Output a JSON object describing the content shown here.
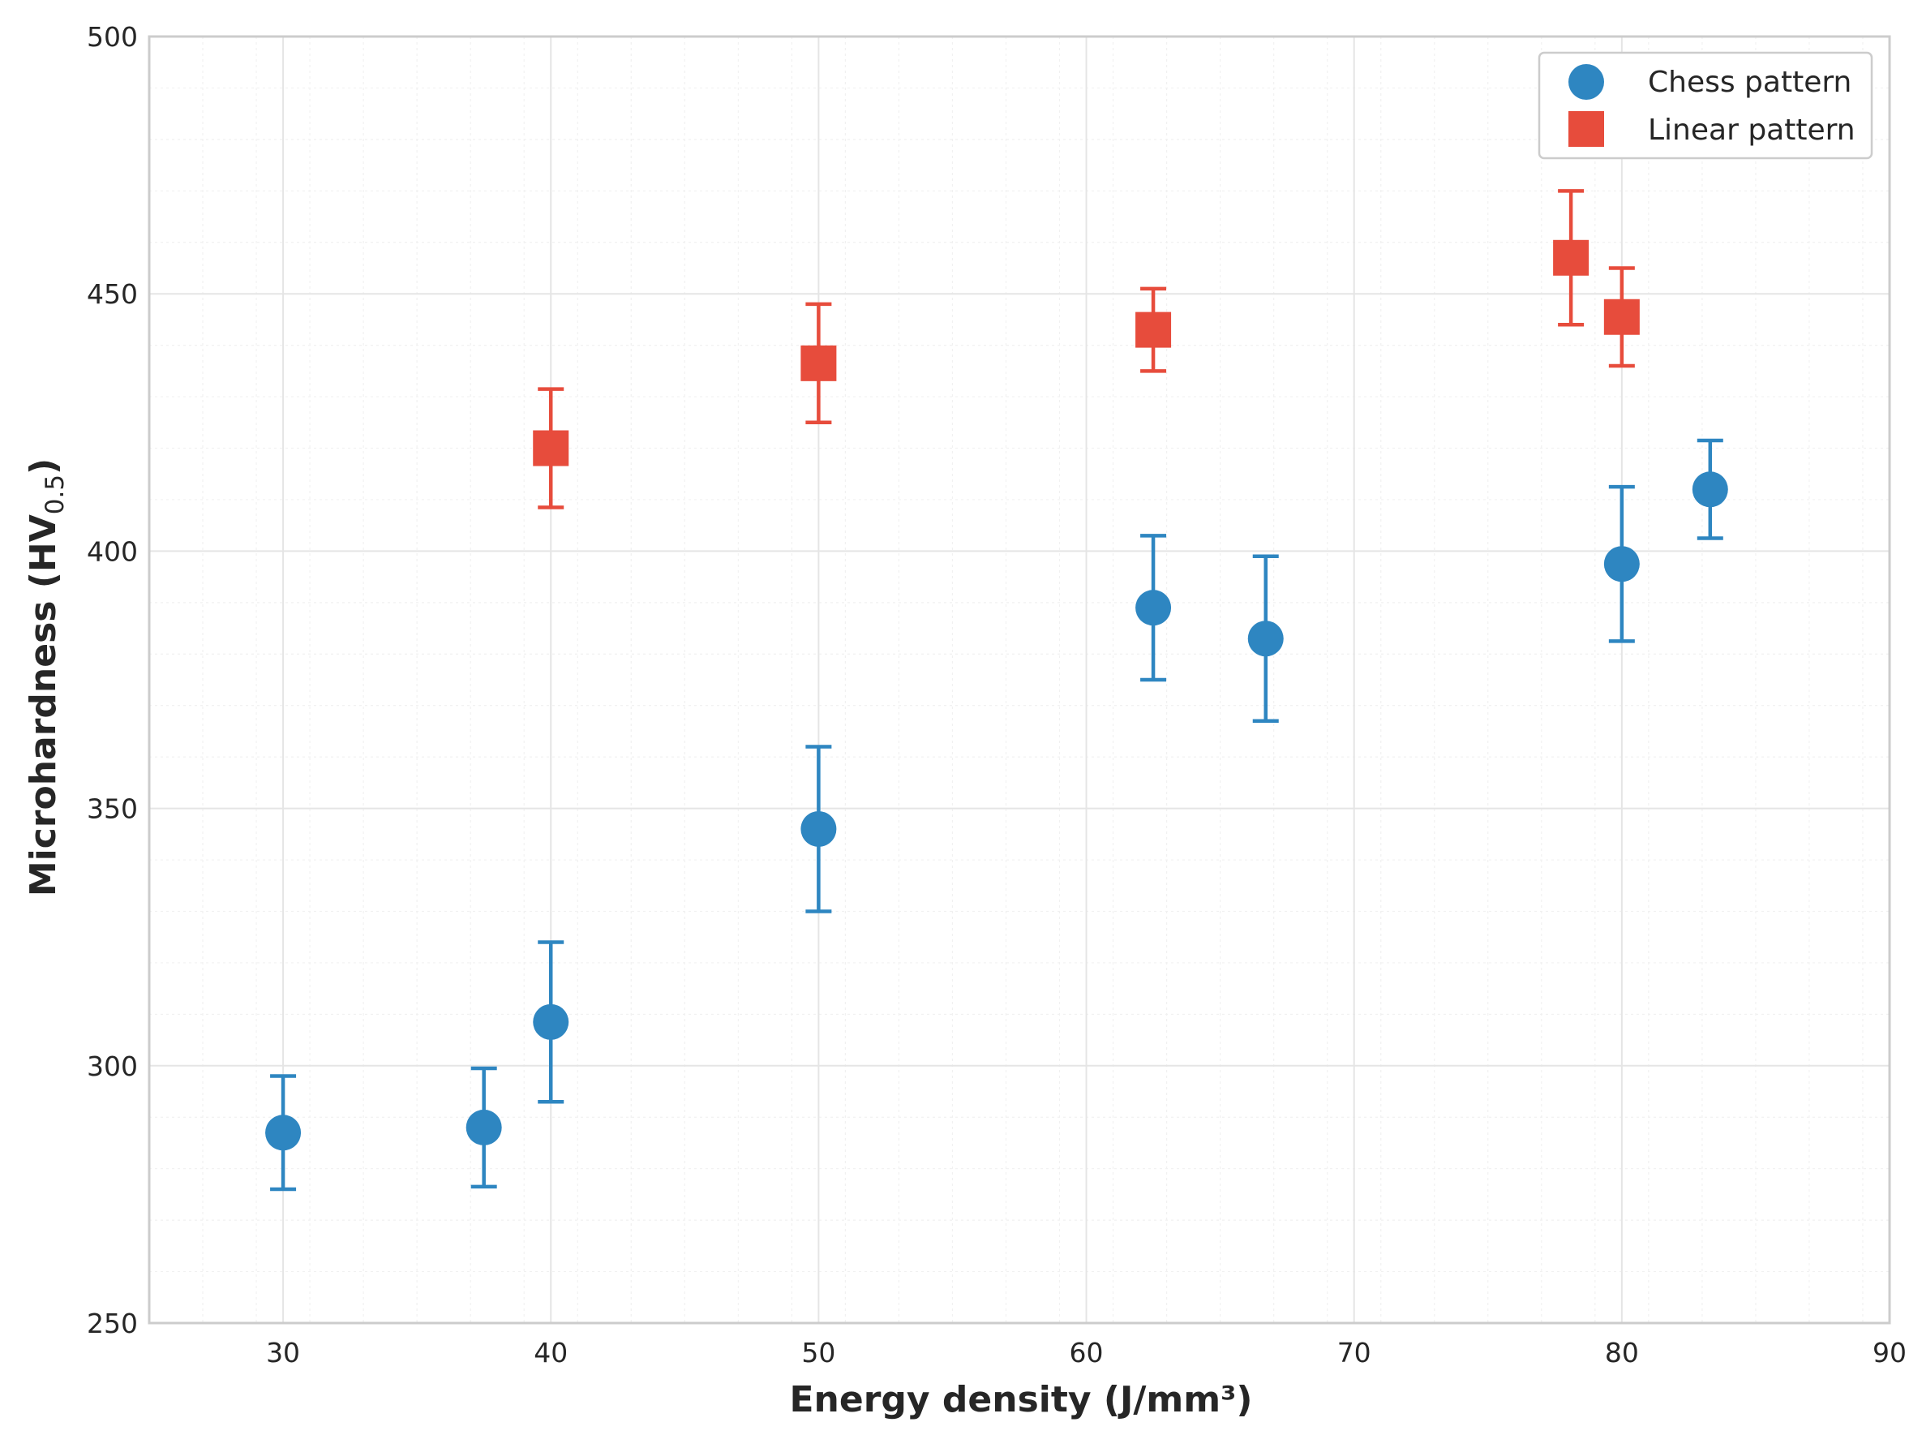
{
  "chart_data": {
    "type": "scatter",
    "title": "",
    "xlabel": "Energy density (J/mm³)",
    "ylabel_main": "Microhardness (HV",
    "ylabel_sub": "0.5",
    "ylabel_close": ")",
    "xlim": [
      25,
      90
    ],
    "ylim": [
      250,
      500
    ],
    "x_ticks": [
      30,
      40,
      50,
      60,
      70,
      80,
      90
    ],
    "y_ticks": [
      250,
      300,
      350,
      400,
      450,
      500
    ],
    "grid": true,
    "legend_position": "top-right",
    "series": [
      {
        "name": "Chess pattern",
        "marker": "circle",
        "color": "#2e86c1",
        "points": [
          {
            "x": 30,
            "y": 287,
            "err": 11
          },
          {
            "x": 37.5,
            "y": 288,
            "err": 11.5
          },
          {
            "x": 40,
            "y": 308.5,
            "err": 15.5
          },
          {
            "x": 50,
            "y": 346,
            "err": 16
          },
          {
            "x": 62.5,
            "y": 389,
            "err": 14
          },
          {
            "x": 66.7,
            "y": 383,
            "err": 16
          },
          {
            "x": 80,
            "y": 397.5,
            "err": 15
          },
          {
            "x": 83.3,
            "y": 412,
            "err": 9.5
          }
        ]
      },
      {
        "name": "Linear pattern",
        "marker": "square",
        "color": "#e74c3c",
        "points": [
          {
            "x": 40,
            "y": 420,
            "err": 11.5
          },
          {
            "x": 50,
            "y": 436.5,
            "err": 11.5
          },
          {
            "x": 62.5,
            "y": 443,
            "err": 8
          },
          {
            "x": 78.1,
            "y": 457,
            "err": 13
          },
          {
            "x": 80,
            "y": 445.5,
            "err": 9.5
          }
        ]
      }
    ]
  }
}
